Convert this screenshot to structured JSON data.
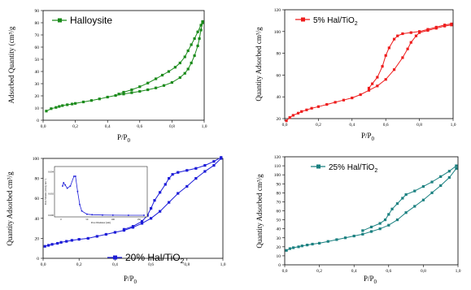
{
  "chart_data": [
    {
      "type": "line",
      "legend": "Halloysite",
      "xlabel": "P/P",
      "xlabel_sub": "0",
      "ylabel": "Adsorbed Quantity (cm³/g",
      "xlim": [
        0,
        1
      ],
      "ylim": [
        0,
        90
      ],
      "xticks": [
        "0,0",
        "0,2",
        "0,4",
        "0,6",
        "0,8",
        "1,0"
      ],
      "yticks": [
        "0",
        "10",
        "20",
        "30",
        "40",
        "50",
        "60",
        "70",
        "80",
        "90"
      ],
      "color": "#1a8a1a",
      "series": [
        {
          "x": [
            0.02,
            0.05,
            0.08,
            0.1,
            0.12,
            0.15,
            0.18,
            0.2,
            0.25,
            0.3,
            0.35,
            0.4,
            0.45,
            0.5,
            0.55,
            0.6,
            0.65,
            0.7,
            0.75,
            0.8,
            0.85,
            0.88,
            0.9,
            0.92,
            0.94,
            0.96,
            0.97,
            0.98,
            0.99
          ],
          "y": [
            7.5,
            9.5,
            10.5,
            11.3,
            12.0,
            12.7,
            13.3,
            13.8,
            15.0,
            16.2,
            17.5,
            19.0,
            20.3,
            21.5,
            22.6,
            23.7,
            25.0,
            26.5,
            28.5,
            31.0,
            35.0,
            38.5,
            42.0,
            47.0,
            53.0,
            61.0,
            67.0,
            74.0,
            80.0
          ]
        },
        {
          "x": [
            0.99,
            0.98,
            0.96,
            0.94,
            0.92,
            0.9,
            0.88,
            0.85,
            0.82,
            0.78,
            0.74,
            0.7,
            0.65,
            0.6,
            0.55,
            0.5,
            0.47
          ],
          "y": [
            81.0,
            78.0,
            72.5,
            67.0,
            62.0,
            57.0,
            52.0,
            47.0,
            43.5,
            40.0,
            37.0,
            34.0,
            30.5,
            27.5,
            25.0,
            23.0,
            21.5
          ]
        }
      ]
    },
    {
      "type": "line",
      "legend": "5% Hal/TiO",
      "legend_sub": "2",
      "xlabel": "P/P",
      "xlabel_sub": "0",
      "ylabel": "Quantity Adsorbed cm³/g",
      "xlim": [
        0,
        1
      ],
      "ylim": [
        20,
        120
      ],
      "xticks": [
        "0,0",
        "0,2",
        "0,4",
        "0,6",
        "0,8",
        "1,0"
      ],
      "yticks": [
        "20",
        "40",
        "60",
        "80",
        "100",
        "120"
      ],
      "color": "#ee1c1c",
      "series": [
        {
          "x": [
            0.01,
            0.03,
            0.05,
            0.08,
            0.1,
            0.13,
            0.16,
            0.2,
            0.25,
            0.3,
            0.35,
            0.4,
            0.45,
            0.5,
            0.55,
            0.6,
            0.65,
            0.7,
            0.73,
            0.75,
            0.78,
            0.8,
            0.85,
            0.9,
            0.95,
            0.99
          ],
          "y": [
            18,
            21,
            23,
            25,
            26.5,
            28,
            29.5,
            31,
            33,
            35,
            37,
            39,
            42,
            46,
            50,
            56,
            65,
            76,
            84,
            90,
            96,
            99,
            101,
            103,
            105,
            106
          ]
        },
        {
          "x": [
            0.99,
            0.95,
            0.9,
            0.85,
            0.8,
            0.75,
            0.7,
            0.67,
            0.65,
            0.62,
            0.6,
            0.58,
            0.55,
            0.52,
            0.5
          ],
          "y": [
            107,
            106,
            104,
            102,
            100,
            99,
            98,
            96,
            93,
            85,
            78,
            68,
            58,
            52,
            48
          ]
        }
      ]
    },
    {
      "type": "line",
      "legend": "20% Hal/TiO",
      "legend_sub": "2",
      "xlabel": "P/P",
      "xlabel_sub": "0",
      "ylabel": "Quantity Adsorbed cm³/g",
      "xlim": [
        0,
        1
      ],
      "ylim": [
        0,
        100
      ],
      "xticks": [
        "0,0",
        "0,2",
        "0,4",
        "0,6",
        "0,8",
        "1,0"
      ],
      "yticks": [
        "0",
        "20",
        "40",
        "60",
        "80",
        "100"
      ],
      "color": "#1c1cd8",
      "series": [
        {
          "x": [
            0.01,
            0.03,
            0.05,
            0.08,
            0.1,
            0.13,
            0.16,
            0.2,
            0.25,
            0.3,
            0.35,
            0.4,
            0.45,
            0.5,
            0.55,
            0.6,
            0.65,
            0.7,
            0.75,
            0.8,
            0.85,
            0.9,
            0.95,
            0.99
          ],
          "y": [
            12,
            13,
            14,
            15,
            16,
            17,
            18,
            19,
            20,
            22,
            24,
            26,
            28,
            31,
            35,
            40,
            47,
            56,
            65,
            72,
            80,
            87,
            93,
            100
          ]
        },
        {
          "x": [
            0.99,
            0.95,
            0.9,
            0.85,
            0.8,
            0.75,
            0.72,
            0.7,
            0.68,
            0.65,
            0.62,
            0.6,
            0.58,
            0.55,
            0.5,
            0.45
          ],
          "y": [
            101,
            97,
            93,
            90,
            88,
            86,
            84,
            80,
            74,
            66,
            58,
            50,
            43,
            37,
            32,
            29
          ]
        }
      ],
      "inset": {
        "xlabel": "Pore Diameter (nm)",
        "ylabel": "Pore Volume (cm³/g·nm⁻¹)",
        "xticks": [
          "0",
          "50",
          "100",
          "150"
        ],
        "yticks": [
          "0.000",
          "0.002",
          "0.004"
        ],
        "x": [
          3,
          5,
          8,
          12,
          18,
          25,
          28,
          32,
          36,
          40,
          50,
          60,
          80,
          100,
          130,
          160
        ],
        "y": [
          0.0027,
          0.003,
          0.0028,
          0.0025,
          0.0027,
          0.0036,
          0.0036,
          0.0022,
          0.001,
          0.0004,
          0.0001,
          5e-05,
          2e-05,
          1e-05,
          0.0,
          0.0
        ]
      }
    },
    {
      "type": "line",
      "legend": "25% Hal/TiO",
      "legend_sub": "2",
      "xlabel": "P/P",
      "xlabel_sub": "0",
      "ylabel": "Quantity Adsorbed cm³/g",
      "xlim": [
        0,
        1
      ],
      "ylim": [
        0,
        120
      ],
      "xticks": [
        "0,0",
        "0,2",
        "0,4",
        "0,6",
        "0,8",
        "1,0"
      ],
      "yticks": [
        "0",
        "10",
        "20",
        "30",
        "40",
        "50",
        "60",
        "70",
        "80",
        "90",
        "100",
        "110",
        "120"
      ],
      "color": "#1a8080",
      "series": [
        {
          "x": [
            0.01,
            0.03,
            0.05,
            0.08,
            0.1,
            0.13,
            0.16,
            0.2,
            0.25,
            0.3,
            0.35,
            0.4,
            0.45,
            0.5,
            0.55,
            0.6,
            0.65,
            0.7,
            0.75,
            0.8,
            0.85,
            0.9,
            0.95,
            0.99
          ],
          "y": [
            16,
            18,
            19,
            20,
            21,
            22,
            23,
            24,
            26,
            28,
            30,
            32,
            34,
            37,
            40,
            44,
            50,
            58,
            65,
            72,
            80,
            88,
            97,
            107
          ]
        },
        {
          "x": [
            0.99,
            0.95,
            0.9,
            0.85,
            0.8,
            0.75,
            0.7,
            0.68,
            0.65,
            0.62,
            0.6,
            0.58,
            0.55,
            0.5,
            0.45
          ],
          "y": [
            110,
            104,
            98,
            92,
            87,
            82,
            78,
            74,
            68,
            62,
            56,
            50,
            46,
            42,
            38
          ]
        }
      ]
    }
  ]
}
